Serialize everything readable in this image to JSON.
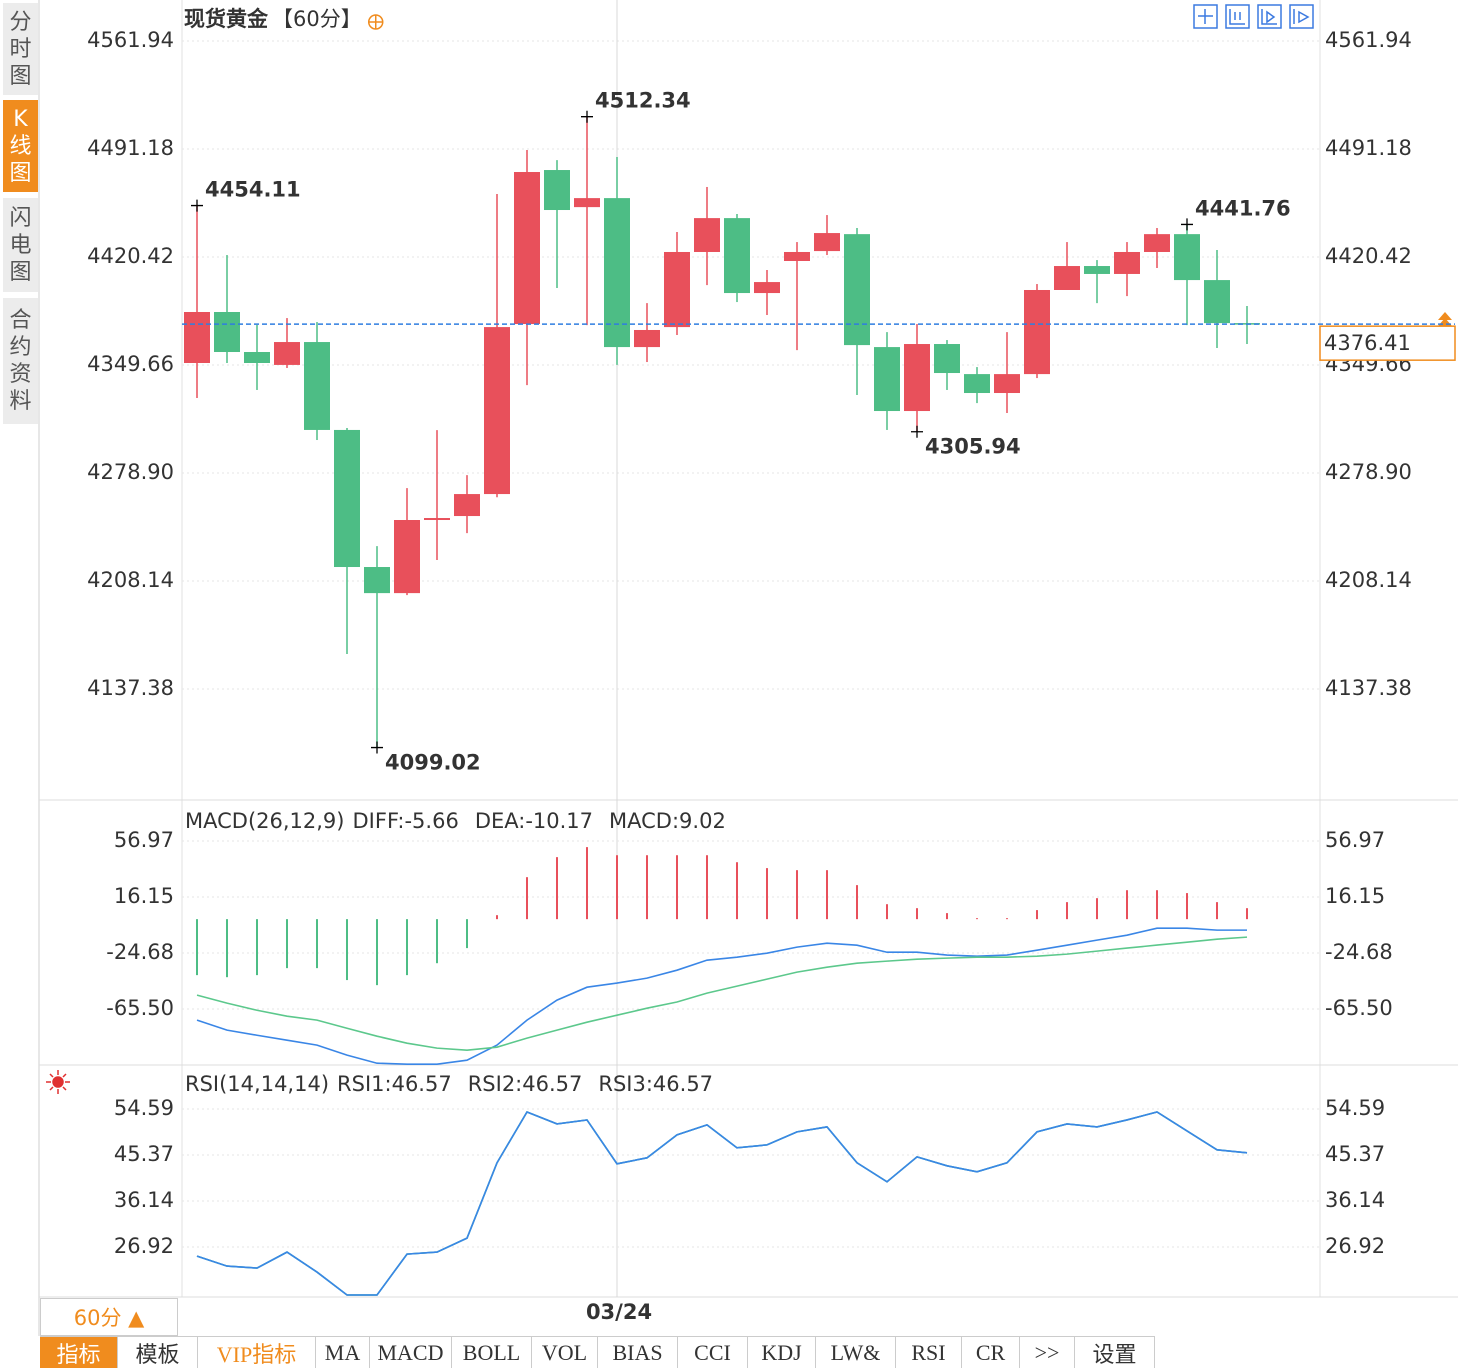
{
  "chart_data": [
    {
      "type": "candlestick",
      "title": "现货黄金",
      "subtitle": "【60分】",
      "categories": [
        null,
        null,
        null,
        null,
        null,
        null,
        null,
        null,
        null,
        null,
        null,
        null,
        null,
        null,
        "03/24",
        null,
        null,
        null,
        null,
        null,
        null,
        null,
        null,
        null,
        null,
        null,
        null,
        null,
        null,
        null,
        null,
        null,
        null,
        null,
        null,
        null
      ],
      "open": [
        4350.97,
        4384.38,
        4358.17,
        4349.7,
        4364.7,
        4307.1,
        4217.3,
        4200.2,
        4248.1,
        4250.7,
        4265.1,
        4376.5,
        4477.4,
        4453.1,
        4459.0,
        4361.4,
        4374.5,
        4423.7,
        4445.9,
        4396.8,
        4417.8,
        4424.3,
        4435.4,
        4361.4,
        4319.5,
        4363.4,
        4343.7,
        4331.3,
        4343.7,
        4398.8,
        4414.5,
        4409.3,
        4423.7,
        4435.4,
        4405.3,
        4377.1
      ],
      "high": [
        4454.11,
        4421.7,
        4375.9,
        4380.4,
        4377.8,
        4308.4,
        4231.0,
        4269.0,
        4307.0,
        4277.5,
        4461.7,
        4490.5,
        4483.9,
        4512.34,
        4485.9,
        4390.2,
        4436.8,
        4466.3,
        4448.6,
        4411.9,
        4430.2,
        4447.9,
        4439.4,
        4371.2,
        4376.5,
        4366.0,
        4348.3,
        4371.2,
        4402.7,
        4430.2,
        4418.4,
        4430.2,
        4439.4,
        4441.76,
        4425.0,
        4388.3
      ],
      "low": [
        4328.0,
        4350.97,
        4333.3,
        4347.7,
        4300.5,
        4160.3,
        4099.02,
        4198.9,
        4221.9,
        4239.5,
        4263.0,
        4336.5,
        4400.1,
        4375.8,
        4349.7,
        4351.6,
        4369.3,
        4402.0,
        4390.9,
        4382.4,
        4359.4,
        4421.7,
        4330.0,
        4307.1,
        4305.94,
        4333.3,
        4324.7,
        4318.2,
        4341.1,
        4398.8,
        4390.2,
        4394.8,
        4413.2,
        4375.8,
        4360.8,
        4363.4
      ],
      "close": [
        4384.38,
        4358.17,
        4350.97,
        4364.7,
        4307.1,
        4217.3,
        4200.2,
        4248.1,
        4249.4,
        4265.1,
        4374.5,
        4476.1,
        4451.2,
        4459.0,
        4361.4,
        4372.6,
        4423.7,
        4445.9,
        4396.8,
        4404.0,
        4423.7,
        4436.1,
        4362.7,
        4319.5,
        4363.4,
        4344.4,
        4331.3,
        4343.7,
        4398.8,
        4414.5,
        4409.3,
        4423.7,
        4435.4,
        4405.3,
        4377.1,
        4376.41
      ],
      "up_color": "#e8505b",
      "down_color": "#4dbd85",
      "last_price_color": "#f08c1e",
      "ylim": [
        4064.65,
        4588.8
      ],
      "yticks": [
        4561.94,
        4491.18,
        4420.42,
        4349.66,
        {
          "value": 4278.9,
          "label": "4278.90"
        },
        4208.14,
        4137.38
      ],
      "grid": true
    },
    {
      "type": "indicator",
      "title": "MACD(26,12,9)",
      "series": [
        {
          "name": "DIFF:-5.66",
          "color": "#3a86e6",
          "type": "line",
          "values": [
            -73.6,
            -80.9,
            -84.6,
            -88.2,
            -91.8,
            -99.1,
            -105.0,
            -105.7,
            -105.7,
            -102.8,
            -91.8,
            -73.6,
            -59.0,
            -49.6,
            -46.6,
            -43.0,
            -37.2,
            -29.9,
            -27.7,
            -24.8,
            -20.4,
            -17.5,
            -19.0,
            -24.1,
            -24.1,
            -26.2,
            -27.0,
            -26.2,
            -22.6,
            -19.0,
            -15.3,
            -11.7,
            -6.6,
            -6.6,
            -8.0,
            -8.0
          ]
        },
        {
          "name": "DEA:-10.17",
          "color": "#5cc88c",
          "type": "line",
          "values": [
            -55.4,
            -61.2,
            -66.4,
            -70.7,
            -73.6,
            -79.5,
            -85.3,
            -90.4,
            -94.0,
            -95.5,
            -93.3,
            -86.7,
            -80.9,
            -75.1,
            -70.0,
            -64.9,
            -60.4,
            -53.9,
            -48.8,
            -43.7,
            -38.6,
            -35.0,
            -32.1,
            -30.6,
            -29.2,
            -28.4,
            -27.7,
            -27.7,
            -27.0,
            -25.5,
            -23.3,
            -21.1,
            -18.9,
            -16.8,
            -14.6,
            -13.1
          ]
        },
        {
          "name": "MACD:9.02",
          "color": "#5ab4f0",
          "type": "bar",
          "up_color": "#e8505b",
          "down_color": "#4dbd85",
          "values": [
            -40.8,
            -42.3,
            -40.8,
            -35.7,
            -35.7,
            -44.4,
            -48.1,
            -40.8,
            -32.1,
            -21.1,
            2.9,
            30.6,
            45.2,
            52.5,
            46.6,
            46.6,
            46.6,
            46.6,
            41.5,
            37.2,
            35.7,
            35.7,
            24.8,
            10.9,
            8.0,
            4.4,
            0.7,
            0.7,
            6.6,
            12.4,
            15.3,
            21.1,
            21.1,
            19.0,
            12.4,
            8.0
          ]
        }
      ],
      "ylim": [
        -106.3,
        83.2
      ],
      "yticks": [
        56.97,
        16.15,
        -24.68,
        {
          "value": -65.5,
          "label": "-65.50"
        }
      ],
      "grid": true
    },
    {
      "type": "indicator",
      "title": "RSI(14,14,14)",
      "series": [
        {
          "name": "RSI3:46.57",
          "color": "#5ab4f0",
          "type": "line",
          "values": [
            25.1,
            23.1,
            22.7,
            25.9,
            21.9,
            17.3,
            17.3,
            25.5,
            25.9,
            28.7,
            43.8,
            54.0,
            51.6,
            52.4,
            43.6,
            44.8,
            49.4,
            51.4,
            46.8,
            47.4,
            50.0,
            51.0,
            43.8,
            40.0,
            45.0,
            43.2,
            42.0,
            43.8,
            50.0,
            51.6,
            51.0,
            52.4,
            54.0,
            50.2,
            46.4,
            45.8
          ]
        },
        {
          "name": "RSI2:46.57",
          "color": "#5cc88c",
          "type": "line",
          "values": [
            25.1,
            23.1,
            22.7,
            25.9,
            21.9,
            17.3,
            17.3,
            25.5,
            25.9,
            28.7,
            43.8,
            54.0,
            51.6,
            52.4,
            43.6,
            44.8,
            49.4,
            51.4,
            46.8,
            47.4,
            50.0,
            51.0,
            43.8,
            40.0,
            45.0,
            43.2,
            42.0,
            43.8,
            50.0,
            51.6,
            51.0,
            52.4,
            54.0,
            50.2,
            46.4,
            45.8
          ]
        },
        {
          "name": "RSI1:46.57",
          "color": "#3a86e6",
          "type": "line",
          "values": [
            25.1,
            23.1,
            22.7,
            25.9,
            21.9,
            17.3,
            17.3,
            25.5,
            25.9,
            28.7,
            43.8,
            54.0,
            51.6,
            52.4,
            43.6,
            44.8,
            49.4,
            51.4,
            46.8,
            47.4,
            50.0,
            51.0,
            43.8,
            40.0,
            45.0,
            43.2,
            42.0,
            43.8,
            50.0,
            51.6,
            51.0,
            52.4,
            54.0,
            50.2,
            46.4,
            45.8
          ]
        }
      ],
      "legend_order": "reverse",
      "ylim": [
        16.9,
        62.81
      ],
      "yticks": [
        54.59,
        45.37,
        36.14,
        26.92
      ],
      "grid": true
    }
  ],
  "ui": {
    "sidebar": [
      "分时图",
      "K线图",
      "闪电图",
      "合约资料"
    ],
    "period_button": "60分 ▲",
    "tabs": [
      "指标",
      "模板",
      "VIP指标",
      "MA",
      "MACD",
      "BOLL",
      "VOL",
      "BIAS",
      "CCI",
      "KDJ",
      "LW&",
      "RSI",
      "CR",
      ">>",
      "设置"
    ]
  }
}
